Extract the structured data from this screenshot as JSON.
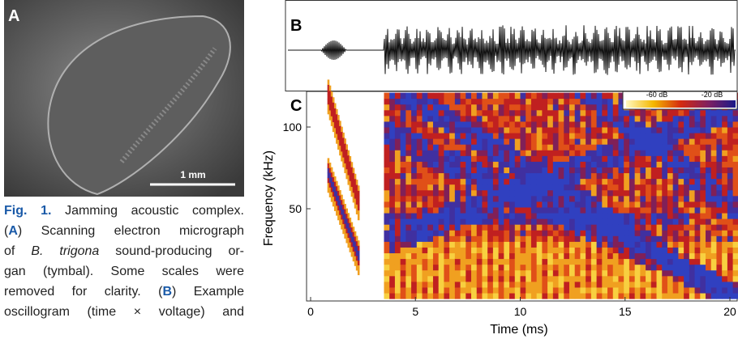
{
  "panel_a": {
    "label": "A",
    "scale_bar": "1 mm"
  },
  "caption": {
    "parts": [
      "Fig. 1.",
      " Jamming acoustic complex.",
      "(",
      "A",
      ") Scanning electron micrograph",
      "of ",
      "B. trigona",
      " sound-producing or-",
      "gan (tymbal). Some scales were",
      "removed for clarity. (",
      "B",
      ") Example",
      "oscillogram (time × voltage) and"
    ]
  },
  "panel_b": {
    "label": "B"
  },
  "panel_c": {
    "label": "C",
    "colorbar_labels": [
      "-60 dB",
      "-20 dB"
    ],
    "y_label": "Frequency (kHz)",
    "x_label": "Time (ms)",
    "xticks": [
      0,
      5,
      10,
      15,
      20
    ],
    "yticks": [
      50,
      100
    ]
  }
}
